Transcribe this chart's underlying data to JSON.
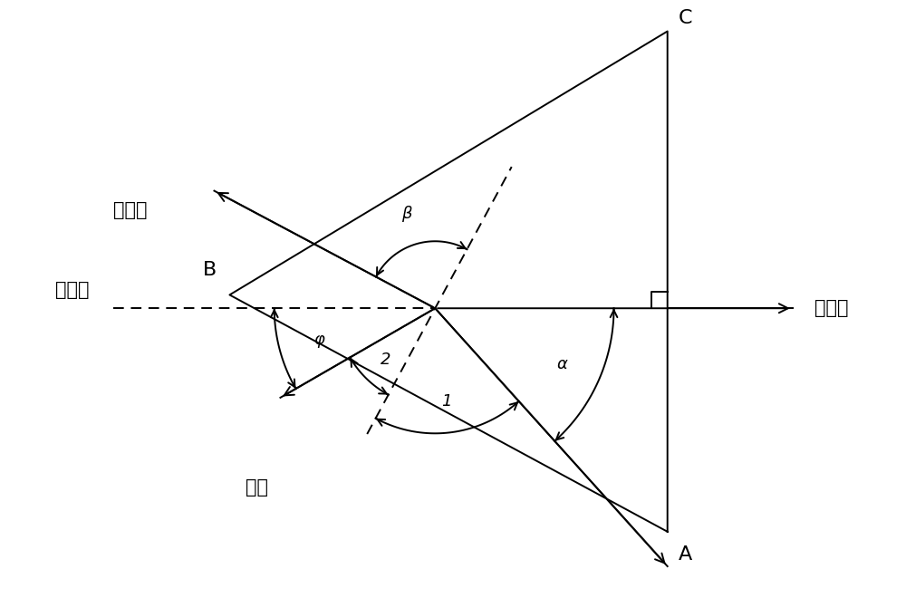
{
  "bg_color": "#ffffff",
  "line_color": "#000000",
  "fig_width": 10.0,
  "fig_height": 6.6,
  "dpi": 100,
  "label_A": "A",
  "label_B": "B",
  "label_C": "C",
  "label_incident": "入射光",
  "label_refracted": "折射光",
  "label_zeroline": "零位线",
  "label_normal": "法线",
  "label_phi": "φ",
  "label_beta": "β",
  "label_i1": "1",
  "label_i2": "2",
  "label_alpha": "α",
  "font_size_chinese": 15,
  "font_size_angle": 13,
  "font_size_vertex": 16,
  "lw": 1.4
}
